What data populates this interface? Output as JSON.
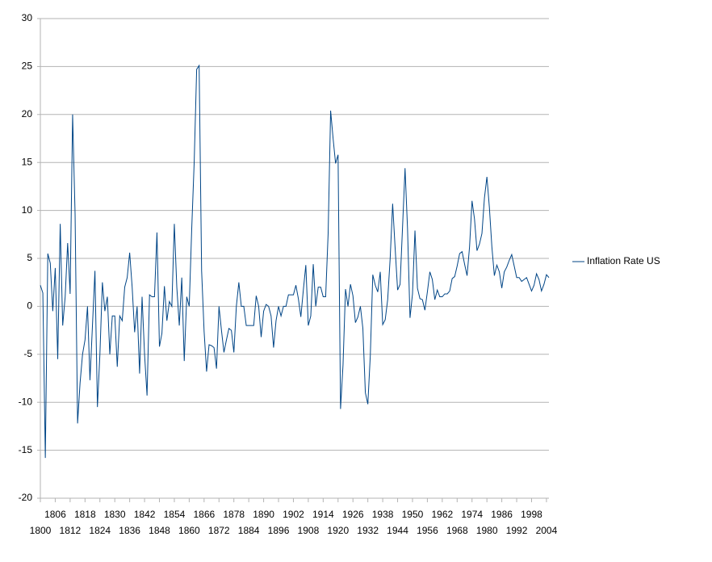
{
  "chart_data": {
    "type": "line",
    "x": [
      1800,
      1801,
      1802,
      1803,
      1804,
      1805,
      1806,
      1807,
      1808,
      1809,
      1810,
      1811,
      1812,
      1813,
      1814,
      1815,
      1816,
      1817,
      1818,
      1819,
      1820,
      1821,
      1822,
      1823,
      1824,
      1825,
      1826,
      1827,
      1828,
      1829,
      1830,
      1831,
      1832,
      1833,
      1834,
      1835,
      1836,
      1837,
      1838,
      1839,
      1840,
      1841,
      1842,
      1843,
      1844,
      1845,
      1846,
      1847,
      1848,
      1849,
      1850,
      1851,
      1852,
      1853,
      1854,
      1855,
      1856,
      1857,
      1858,
      1859,
      1860,
      1861,
      1862,
      1863,
      1864,
      1865,
      1866,
      1867,
      1868,
      1869,
      1870,
      1871,
      1872,
      1873,
      1874,
      1875,
      1876,
      1877,
      1878,
      1879,
      1880,
      1881,
      1882,
      1883,
      1884,
      1885,
      1886,
      1887,
      1888,
      1889,
      1890,
      1891,
      1892,
      1893,
      1894,
      1895,
      1896,
      1897,
      1898,
      1899,
      1900,
      1901,
      1902,
      1903,
      1904,
      1905,
      1906,
      1907,
      1908,
      1909,
      1910,
      1911,
      1912,
      1913,
      1914,
      1915,
      1916,
      1917,
      1918,
      1919,
      1920,
      1921,
      1922,
      1923,
      1924,
      1925,
      1926,
      1927,
      1928,
      1929,
      1930,
      1931,
      1932,
      1933,
      1934,
      1935,
      1936,
      1937,
      1938,
      1939,
      1940,
      1941,
      1942,
      1943,
      1944,
      1945,
      1946,
      1947,
      1948,
      1949,
      1950,
      1951,
      1952,
      1953,
      1954,
      1955,
      1956,
      1957,
      1958,
      1959,
      1960,
      1961,
      1962,
      1963,
      1964,
      1965,
      1966,
      1967,
      1968,
      1969,
      1970,
      1971,
      1972,
      1973,
      1974,
      1975,
      1976,
      1977,
      1978,
      1979,
      1980,
      1981,
      1982,
      1983,
      1984,
      1985,
      1986,
      1987,
      1988,
      1989,
      1990,
      1991,
      1992,
      1993,
      1994,
      1995,
      1996,
      1997,
      1998,
      1999,
      2000,
      2001,
      2002,
      2003,
      2004,
      2005
    ],
    "series": [
      {
        "name": "Inflation Rate US",
        "color": "#004586",
        "values": [
          2.2,
          1.4,
          -15.8,
          5.5,
          4.5,
          -0.5,
          4,
          -5.5,
          8.6,
          -2,
          1,
          6.6,
          1.3,
          20,
          9.6,
          -12.2,
          -8,
          -5,
          -3.5,
          0,
          -7.7,
          -2,
          3.7,
          -10.5,
          -5,
          2.5,
          -0.5,
          1,
          -5,
          -1,
          -1,
          -6.3,
          -1,
          -1.5,
          2,
          3,
          5.6,
          2,
          -2.7,
          0,
          -7,
          1,
          -5,
          -9.3,
          1.2,
          1,
          1,
          7.7,
          -4.2,
          -2.8,
          2.1,
          -1.5,
          0.5,
          0,
          8.6,
          2,
          -2,
          3,
          -5.7,
          1,
          0,
          8,
          15,
          24.7,
          25.1,
          3.7,
          -2.6,
          -6.8,
          -4,
          -4.1,
          -4.3,
          -6.5,
          0,
          -2.5,
          -4.8,
          -3.5,
          -2.3,
          -2.5,
          -4.8,
          0,
          2.5,
          0,
          0,
          -2,
          -2,
          -2,
          -2,
          1.1,
          0,
          -3.2,
          -0.5,
          0.2,
          0,
          -1,
          -4.3,
          -1.5,
          0,
          -1,
          0,
          0,
          1.2,
          1.2,
          1.2,
          2.2,
          0.8,
          -1.1,
          1.7,
          4.3,
          -2,
          -1,
          4.4,
          0,
          2,
          2,
          1,
          1,
          7.6,
          20.4,
          17.5,
          14.9,
          15.8,
          -10.7,
          -6.1,
          1.8,
          0,
          2.3,
          1.1,
          -1.7,
          -1.1,
          0,
          -2.3,
          -9,
          -10.2,
          -5.1,
          3.3,
          2.2,
          1.5,
          3.6,
          -1.9,
          -1.4,
          0.7,
          5,
          10.7,
          6.1,
          1.7,
          2.3,
          8.3,
          14.4,
          8.1,
          -1.2,
          1.3,
          7.9,
          1.9,
          0.8,
          0.7,
          -0.4,
          1.5,
          3.6,
          2.8,
          0.7,
          1.7,
          1,
          1,
          1.3,
          1.3,
          1.6,
          2.9,
          3.1,
          4.2,
          5.5,
          5.7,
          4.4,
          3.2,
          6.2,
          11,
          9.1,
          5.8,
          6.5,
          7.6,
          11.3,
          13.5,
          10.3,
          6.2,
          3.2,
          4.3,
          3.6,
          1.9,
          3.6,
          4.1,
          4.8,
          5.4,
          4.2,
          3,
          3,
          2.6,
          2.8,
          3,
          2.3,
          1.6,
          2.2,
          3.4,
          2.8,
          1.6,
          2.3,
          3.3,
          3
        ]
      }
    ],
    "xlim": [
      1800,
      2005
    ],
    "xticks": [
      1800,
      1806,
      1812,
      1818,
      1824,
      1830,
      1836,
      1842,
      1848,
      1854,
      1860,
      1866,
      1872,
      1878,
      1884,
      1890,
      1896,
      1902,
      1908,
      1914,
      1920,
      1926,
      1932,
      1938,
      1944,
      1950,
      1956,
      1962,
      1968,
      1974,
      1980,
      1986,
      1992,
      1998,
      2004
    ],
    "ylim": [
      -20,
      30
    ],
    "yticks": [
      -20,
      -15,
      -10,
      -5,
      0,
      5,
      10,
      15,
      20,
      25,
      30
    ],
    "grid": true,
    "legend": "right"
  }
}
